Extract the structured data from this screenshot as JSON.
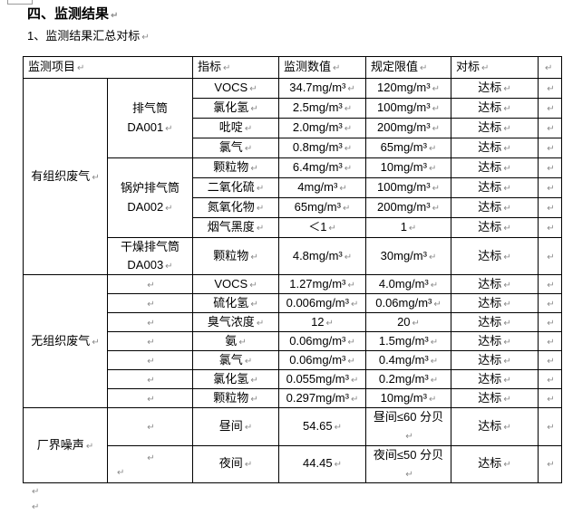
{
  "marks": {
    "pilcrow": "↵"
  },
  "colors": {
    "table_border": "#000000",
    "paragraph_mark": "#8a8a8a",
    "text": "#000000"
  },
  "page": {
    "heading": "四、监测结果",
    "subheading": "1、监测结果汇总对标"
  },
  "table": {
    "header": {
      "project": "监测项目",
      "indicator": "指标",
      "value": "监测数值",
      "limit": "规定限值",
      "benchmark": "对标"
    },
    "organized": {
      "category": "有组织废气",
      "stacks": [
        {
          "name": "排气筒",
          "code": "DA001"
        },
        {
          "name": "锅炉排气筒",
          "code": "DA002"
        },
        {
          "name": "干燥排气筒",
          "code": "DA003"
        }
      ],
      "rows": [
        {
          "indicator": "VOCS",
          "value": "34.7mg/m³",
          "limit": "120mg/m³",
          "benchmark": "达标"
        },
        {
          "indicator": "氯化氢",
          "value": "2.5mg/m³",
          "limit": "100mg/m³",
          "benchmark": "达标"
        },
        {
          "indicator": "吡啶",
          "value": "2.0mg/m³",
          "limit": "200mg/m³",
          "benchmark": "达标"
        },
        {
          "indicator": "氯气",
          "value": "0.8mg/m³",
          "limit": "65mg/m³",
          "benchmark": "达标"
        },
        {
          "indicator": "颗粒物",
          "value": "6.4mg/m³",
          "limit": "10mg/m³",
          "benchmark": "达标"
        },
        {
          "indicator": "二氧化硫",
          "value": "4mg/m³",
          "limit": "100mg/m³",
          "benchmark": "达标"
        },
        {
          "indicator": "氮氧化物",
          "value": "65mg/m³",
          "limit": "200mg/m³",
          "benchmark": "达标"
        },
        {
          "indicator": "烟气黑度",
          "value": "＜1",
          "limit": "1",
          "benchmark": "达标"
        },
        {
          "indicator": "颗粒物",
          "value": "4.8mg/m³",
          "limit": "30mg/m³",
          "benchmark": "达标"
        }
      ]
    },
    "unorganized": {
      "category": "无组织废气",
      "rows": [
        {
          "indicator": "VOCS",
          "value": "1.27mg/m³",
          "limit": "4.0mg/m³",
          "benchmark": "达标"
        },
        {
          "indicator": "硫化氢",
          "value": "0.006mg/m³",
          "limit": "0.06mg/m³",
          "benchmark": "达标"
        },
        {
          "indicator": "臭气浓度",
          "value": "12",
          "limit": "20",
          "benchmark": "达标"
        },
        {
          "indicator": "氨",
          "value": "0.06mg/m³",
          "limit": "1.5mg/m³",
          "benchmark": "达标"
        },
        {
          "indicator": "氯气",
          "value": "0.06mg/m³",
          "limit": "0.4mg/m³",
          "benchmark": "达标"
        },
        {
          "indicator": "氯化氢",
          "value": "0.055mg/m³",
          "limit": "0.2mg/m³",
          "benchmark": "达标"
        },
        {
          "indicator": "颗粒物",
          "value": "0.297mg/m³",
          "limit": "10mg/m³",
          "benchmark": "达标"
        }
      ]
    },
    "noise": {
      "category": "厂界噪声",
      "rows": [
        {
          "indicator": "昼间",
          "value": "54.65",
          "limit": "昼间≤60 分贝",
          "benchmark": "达标"
        },
        {
          "indicator": "夜间",
          "value": "44.45",
          "limit": "夜间≤50 分贝",
          "benchmark": "达标"
        }
      ]
    }
  }
}
